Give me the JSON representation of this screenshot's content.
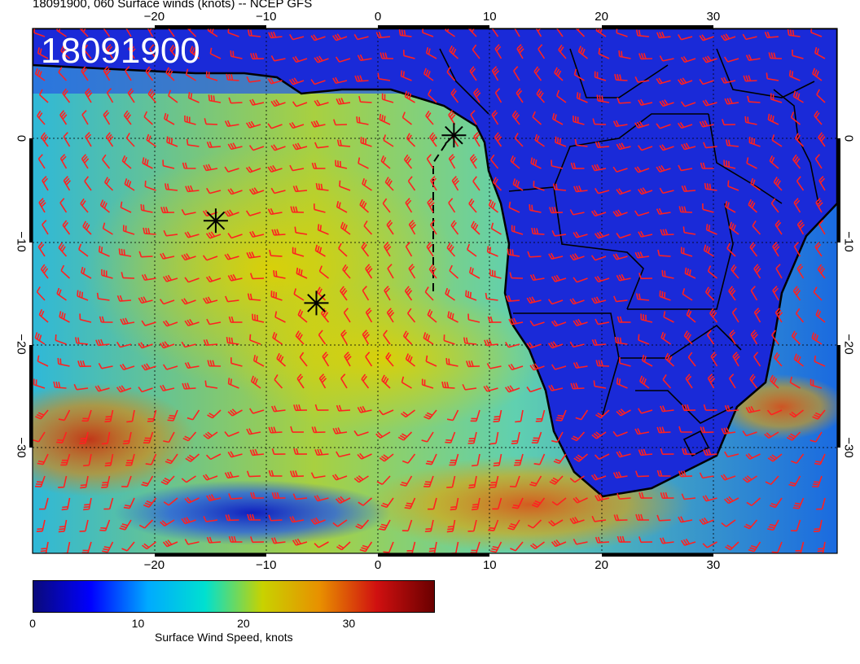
{
  "header": {
    "title": "18091900, 060 Surface winds (knots) -- NCEP GFS"
  },
  "map": {
    "overlay_label": "18091900",
    "lon_ticks": [
      "−20",
      "−10",
      "0",
      "10",
      "20",
      "30"
    ],
    "lon_values": [
      -20,
      -10,
      0,
      10,
      20,
      30
    ],
    "lat_ticks": [
      "0",
      "−10",
      "−20",
      "−30"
    ],
    "lat_values": [
      0,
      -10,
      -20,
      -30
    ],
    "barb_color": "#ff2020",
    "land_color": "#1a2ad8",
    "coast_color": "#000000",
    "markers": [
      {
        "name": "storm-marker-west",
        "lon": -14.5,
        "lat": -8
      },
      {
        "name": "storm-marker-south",
        "lon": -5.5,
        "lat": -16
      },
      {
        "name": "storm-marker-gulf",
        "lon": 6.8,
        "lat": 0.3
      }
    ]
  },
  "colorbar": {
    "label": "Surface Wind Speed, knots",
    "ticks": [
      "0",
      "10",
      "20",
      "30"
    ],
    "tick_values": [
      0,
      10,
      20,
      30
    ],
    "max": 38,
    "colors": [
      "#0a0a7a",
      "#0000ff",
      "#00aaff",
      "#00e0d0",
      "#c8d200",
      "#e89000",
      "#d01010",
      "#6a0000"
    ]
  }
}
